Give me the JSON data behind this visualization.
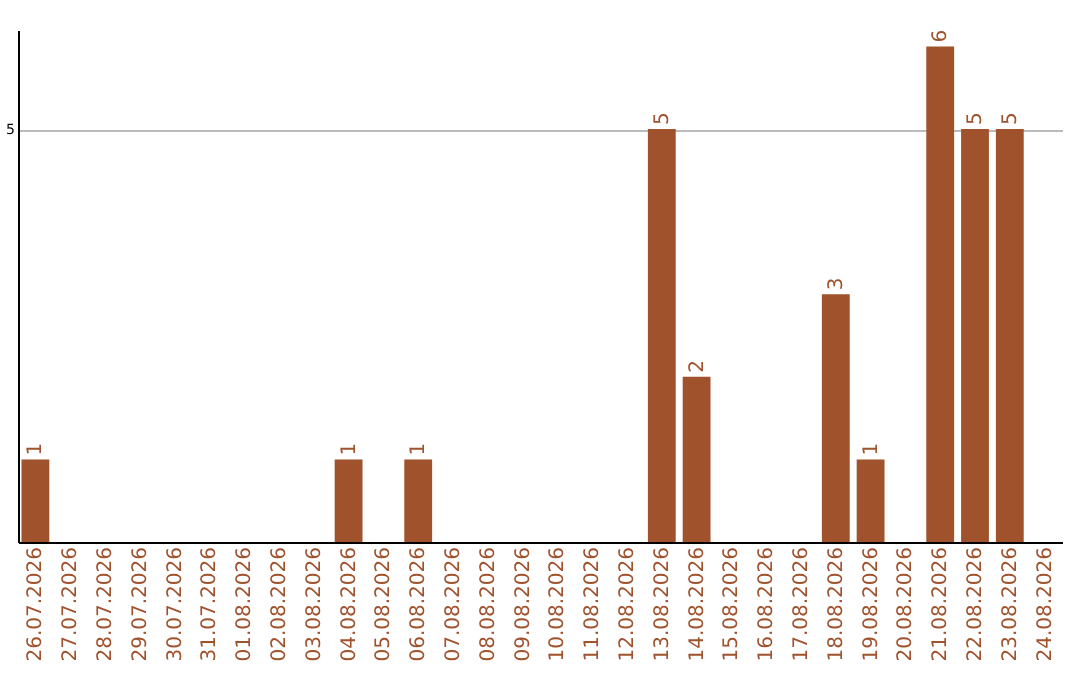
{
  "chart_data": {
    "type": "bar",
    "categories": [
      "26.07.2026",
      "27.07.2026",
      "28.07.2026",
      "29.07.2026",
      "30.07.2026",
      "31.07.2026",
      "01.08.2026",
      "02.08.2026",
      "03.08.2026",
      "04.08.2026",
      "05.08.2026",
      "06.08.2026",
      "07.08.2026",
      "08.08.2026",
      "09.08.2026",
      "10.08.2026",
      "11.08.2026",
      "12.08.2026",
      "13.08.2026",
      "14.08.2026",
      "15.08.2026",
      "16.08.2026",
      "17.08.2026",
      "18.08.2026",
      "19.08.2026",
      "20.08.2026",
      "21.08.2026",
      "22.08.2026",
      "23.08.2026",
      "24.08.2026"
    ],
    "values": [
      1,
      0,
      0,
      0,
      0,
      0,
      0,
      0,
      0,
      1,
      0,
      1,
      0,
      0,
      0,
      0,
      0,
      0,
      5,
      2,
      0,
      0,
      0,
      3,
      1,
      0,
      6,
      5,
      5,
      0
    ],
    "value_labels": [
      "1",
      null,
      null,
      null,
      null,
      null,
      null,
      null,
      null,
      "1",
      null,
      "1",
      null,
      null,
      null,
      null,
      null,
      null,
      "5",
      "2",
      null,
      null,
      null,
      "3",
      "1",
      null,
      "6",
      "5",
      "5",
      null
    ],
    "color": "#a0522d",
    "ylim": [
      0,
      6.2
    ],
    "yticks": [
      5
    ],
    "grid": "y"
  }
}
